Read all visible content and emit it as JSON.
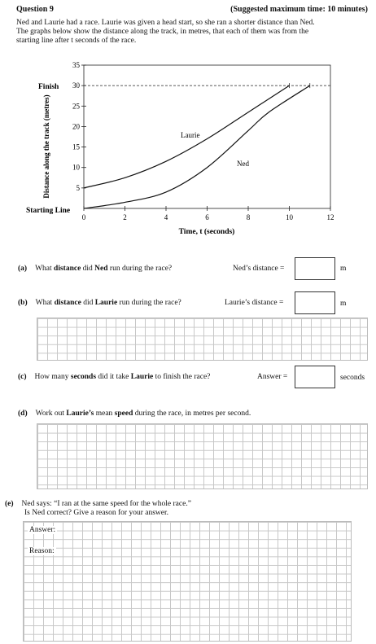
{
  "header": {
    "question": "Question 9",
    "time": "(Suggested maximum time: 10 minutes)"
  },
  "intro": [
    "Ned and Laurie had a race.  Laurie was given a head start, so she ran a shorter distance than Ned.",
    "The graphs below show the distance along the track, in metres, that each of them was from the",
    "starting line after t seconds of the race."
  ],
  "chart_data": {
    "type": "line",
    "xlabel": "Time, t (seconds)",
    "ylabel": "Distance along the track (metres)",
    "xlim": [
      0,
      12
    ],
    "ylim": [
      0,
      35
    ],
    "x_ticks": [
      "0",
      "2",
      "4",
      "6",
      "8",
      "10",
      "12"
    ],
    "y_ticks": [
      "5",
      "10",
      "15",
      "20",
      "25",
      "30",
      "35"
    ],
    "y_special_labels": {
      "finish": "Finish",
      "start": "Starting Line"
    },
    "finish_line_y": 30,
    "series": [
      {
        "name": "Laurie",
        "points": [
          [
            0,
            5
          ],
          [
            2,
            7.5
          ],
          [
            4,
            11.5
          ],
          [
            6,
            17
          ],
          [
            8,
            23.5
          ],
          [
            10,
            30
          ]
        ]
      },
      {
        "name": "Ned",
        "points": [
          [
            0,
            0
          ],
          [
            2,
            1.5
          ],
          [
            4,
            4
          ],
          [
            6,
            10
          ],
          [
            8,
            19
          ],
          [
            9,
            23.5
          ],
          [
            11,
            30
          ]
        ]
      }
    ]
  },
  "parts": {
    "a": {
      "label": "(a)",
      "q_pre": "What ",
      "q_b1": "distance",
      "q_mid": " did ",
      "q_b2": "Ned",
      "q_post": " run during the race?",
      "answer_label": "Ned’s distance =",
      "unit": "m"
    },
    "b": {
      "label": "(b)",
      "q_pre": "What ",
      "q_b1": "distance",
      "q_mid": " did ",
      "q_b2": "Laurie",
      "q_post": " run during the race?",
      "answer_label": "Laurie’s distance =",
      "unit": "m"
    },
    "c": {
      "label": "(c)",
      "q_pre": "How many ",
      "q_b1": "seconds",
      "q_mid": " did it take ",
      "q_b2": "Laurie",
      "q_post": " to finish the race?",
      "answer_label": "Answer =",
      "unit": "seconds"
    },
    "d": {
      "label": "(d)",
      "q_pre": "Work out ",
      "q_b1": "Laurie’s",
      "q_mid": " mean ",
      "q_b2": "speed",
      "q_post": " during the race, in metres per second."
    },
    "e": {
      "label": "(e)",
      "line1": "Ned says:  “I ran at the same speed for the whole race.”",
      "line2": "Is Ned correct?  Give a reason for your answer.",
      "answer_label": "Answer:",
      "reason_label": "Reason:"
    }
  }
}
